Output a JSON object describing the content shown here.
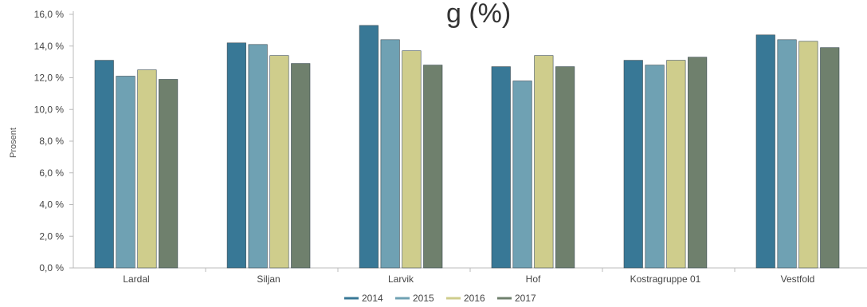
{
  "chart_data": {
    "type": "bar",
    "title": "",
    "title_fragment": "g (%)",
    "ylabel": "Prosent",
    "xlabel": "",
    "ylim": [
      0,
      16
    ],
    "yticks": [
      "0,0 %",
      "2,0 %",
      "4,0 %",
      "6,0 %",
      "8,0 %",
      "10,0 %",
      "12,0 %",
      "14,0 %",
      "16,0 %"
    ],
    "grid": false,
    "legend_position": "bottom",
    "categories": [
      "Lardal",
      "Siljan",
      "Larvik",
      "Hof",
      "Kostragruppe 01",
      "Vestfold"
    ],
    "series": [
      {
        "name": "2014",
        "color": "#387896",
        "values": [
          13.1,
          14.2,
          15.3,
          12.7,
          13.1,
          14.7
        ]
      },
      {
        "name": "2015",
        "color": "#6fa1b3",
        "values": [
          12.1,
          14.1,
          14.4,
          11.8,
          12.8,
          14.4
        ]
      },
      {
        "name": "2016",
        "color": "#cfcd8c",
        "values": [
          12.5,
          13.4,
          13.7,
          13.4,
          13.1,
          14.3
        ]
      },
      {
        "name": "2017",
        "color": "#6f806d",
        "values": [
          11.9,
          12.9,
          12.8,
          12.7,
          13.3,
          13.9
        ]
      }
    ]
  }
}
